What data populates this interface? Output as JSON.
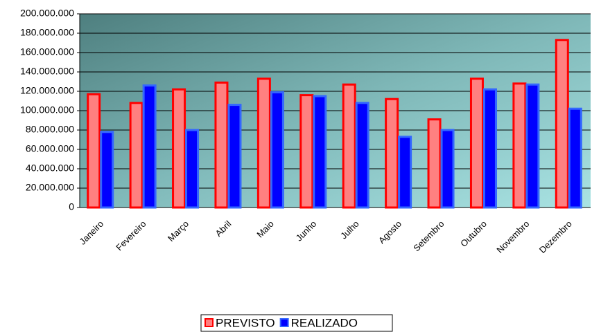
{
  "chart_data": {
    "type": "bar",
    "categories": [
      "Janeiro",
      "Fevereiro",
      "Março",
      "Abril",
      "Maio",
      "Junho",
      "Julho",
      "Agosto",
      "Setembro",
      "Outubro",
      "Novembro",
      "Dezembro"
    ],
    "series": [
      {
        "name": "PREVISTO",
        "color": "#ff8080",
        "edgecolor": "#ff0000",
        "values": [
          117000000,
          108000000,
          122000000,
          129000000,
          133000000,
          116000000,
          127000000,
          112000000,
          91000000,
          133000000,
          128000000,
          173000000
        ]
      },
      {
        "name": "REALIZADO",
        "color": "#0000ff",
        "edgecolor": "#3366ff",
        "values": [
          78000000,
          126000000,
          80000000,
          106000000,
          119000000,
          115000000,
          108000000,
          73000000,
          80000000,
          122000000,
          127000000,
          102000000
        ]
      }
    ],
    "ylim": [
      0,
      200000000
    ],
    "yticks": [
      0,
      {
        "value": 20000000,
        "label": "20.000.000"
      },
      {
        "value": 40000000,
        "label": "40.000.000"
      },
      {
        "value": 60000000,
        "label": "60.000.000"
      },
      {
        "value": 80000000,
        "label": "80.000.000"
      },
      {
        "value": 100000000,
        "label": "100.000.000"
      },
      {
        "value": 120000000,
        "label": "120.000.000"
      },
      {
        "value": 140000000,
        "label": "140.000.000"
      },
      {
        "value": 160000000,
        "label": "160.000.000"
      },
      {
        "value": 180000000,
        "label": "180.000.000"
      },
      {
        "value": 200000000,
        "label": "200.000.000"
      }
    ],
    "grid": true,
    "legend": "bottom"
  }
}
